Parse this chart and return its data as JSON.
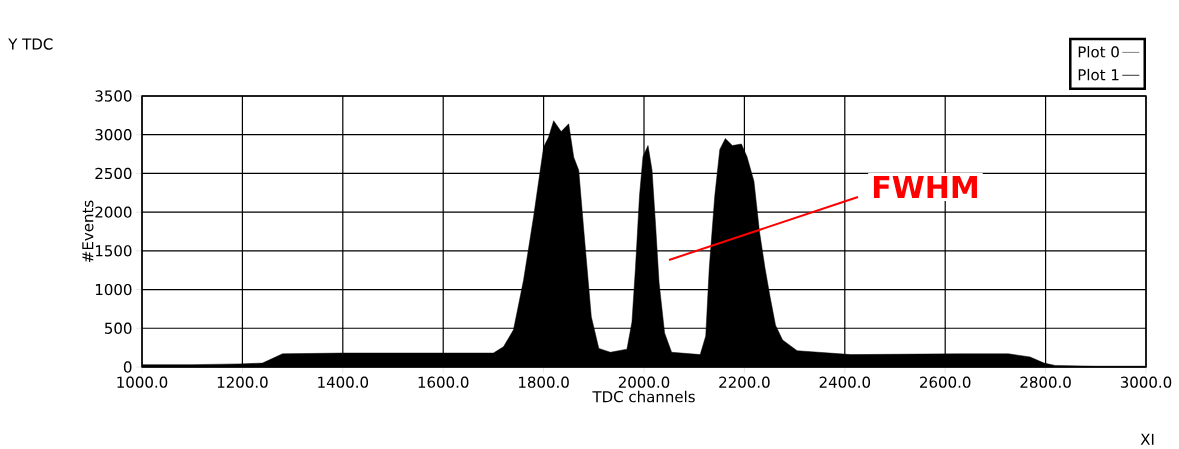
{
  "chart_data": {
    "type": "area",
    "xlabel": "TDC channels",
    "ylabel": "#Events",
    "x": [
      1000,
      1100,
      1195,
      1240,
      1280,
      1400,
      1550,
      1700,
      1720,
      1740,
      1760,
      1780,
      1800,
      1810,
      1820,
      1835,
      1850,
      1860,
      1870,
      1880,
      1895,
      1910,
      1933,
      1966,
      1976,
      1983,
      1991,
      1998,
      2008,
      2016,
      2023,
      2030,
      2041,
      2055,
      2112,
      2123,
      2130,
      2141,
      2151,
      2162,
      2176,
      2194,
      2205,
      2219,
      2230,
      2241,
      2251,
      2262,
      2276,
      2305,
      2412,
      2626,
      2726,
      2769,
      2797,
      2819,
      2900,
      3000
    ],
    "series": [
      {
        "name": "Plot 0",
        "color": "#000000",
        "values": [
          30,
          30,
          40,
          50,
          170,
          180,
          180,
          180,
          260,
          480,
          1120,
          1940,
          2840,
          2970,
          3180,
          3040,
          3140,
          2710,
          2540,
          1770,
          650,
          240,
          190,
          230,
          580,
          1280,
          2210,
          2720,
          2860,
          2540,
          1840,
          1090,
          440,
          190,
          160,
          400,
          1280,
          2210,
          2810,
          2950,
          2860,
          2880,
          2720,
          2400,
          1750,
          1280,
          910,
          540,
          350,
          210,
          160,
          170,
          170,
          130,
          50,
          20,
          10,
          10
        ]
      },
      {
        "name": "Plot 1",
        "color": "#000000",
        "type": "line",
        "values": [
          null,
          null,
          null,
          null,
          null,
          null,
          null,
          null,
          null,
          null,
          null,
          null,
          null,
          null,
          null,
          null,
          null,
          null,
          null,
          null,
          null,
          null,
          null,
          null,
          null,
          null,
          null,
          null,
          null,
          null,
          null,
          null,
          null,
          null,
          null,
          null,
          null,
          null,
          null,
          null,
          null,
          null,
          null,
          null,
          null,
          null,
          null,
          null,
          null,
          null,
          null,
          null,
          null,
          null,
          null,
          null,
          null,
          null
        ]
      }
    ],
    "xlim": [
      1000,
      3000
    ],
    "xticks": [
      {
        "value": 1000,
        "label": "1000.0"
      },
      {
        "value": 1200,
        "label": "1200.0"
      },
      {
        "value": 1400,
        "label": "1400.0"
      },
      {
        "value": 1600,
        "label": "1600.0"
      },
      {
        "value": 1800,
        "label": "1800.0"
      },
      {
        "value": 2000,
        "label": "2000.0"
      },
      {
        "value": 2200,
        "label": "2200.0"
      },
      {
        "value": 2400,
        "label": "2400.0"
      },
      {
        "value": 2600,
        "label": "2600.0"
      },
      {
        "value": 2800,
        "label": "2800.0"
      },
      {
        "value": 3000,
        "label": "3000.0"
      }
    ],
    "ylim": [
      0,
      3500
    ],
    "yticks": [
      0,
      500,
      1000,
      1500,
      2000,
      2500,
      3000,
      3500
    ],
    "grid": true,
    "legend": "top right",
    "marker": "none",
    "annotations": [
      "FWHM",
      "Y TDC",
      "XI"
    ]
  }
}
